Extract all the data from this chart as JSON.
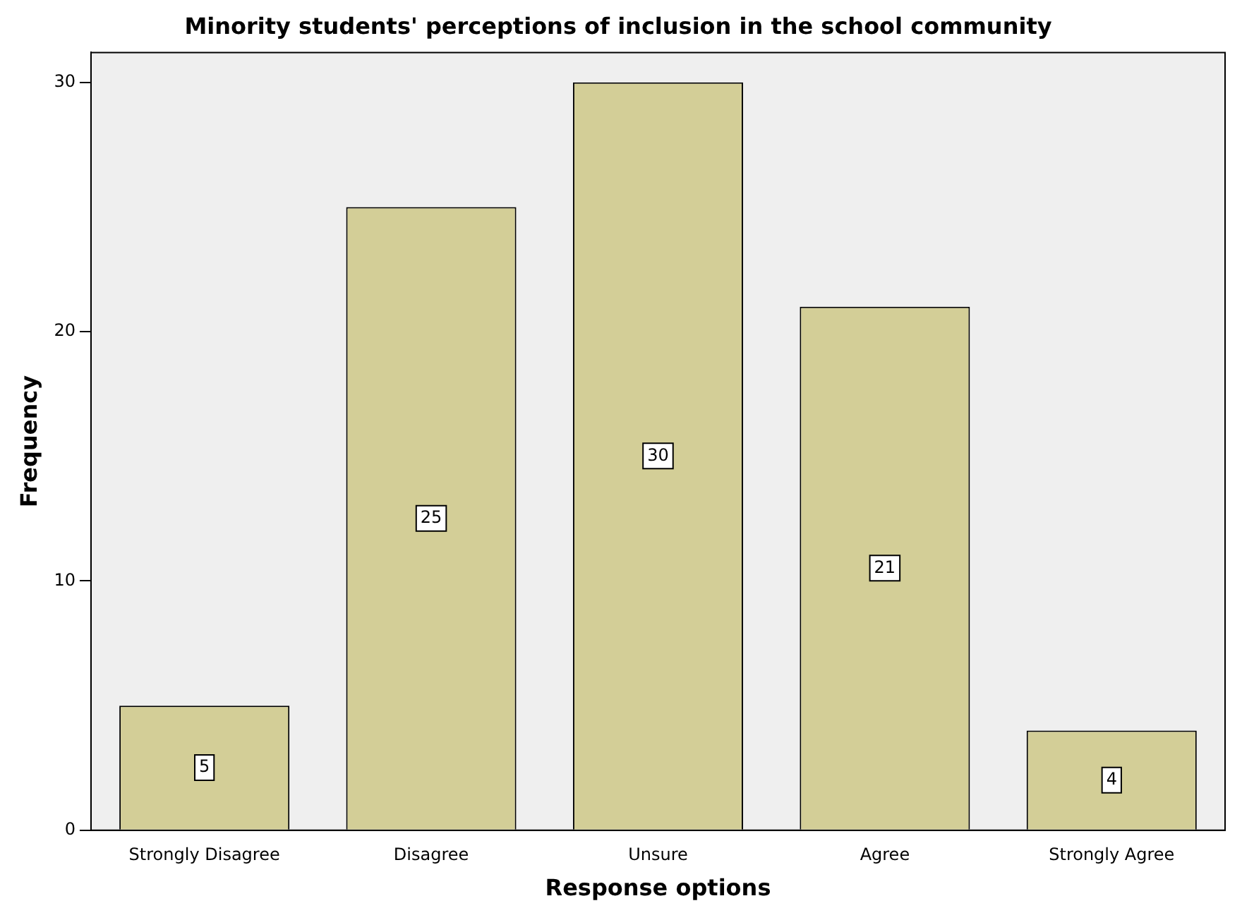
{
  "chart_data": {
    "type": "bar",
    "title": "Minority students' perceptions of inclusion in the school community",
    "xlabel": "Response options",
    "ylabel": "Frequency",
    "categories": [
      "Strongly Disagree",
      "Disagree",
      "Unsure",
      "Agree",
      "Strongly Agree"
    ],
    "values": [
      5,
      25,
      30,
      21,
      4
    ],
    "color": "#d3ce97",
    "ylim": [
      0,
      31.2
    ],
    "yticks": [
      0,
      10,
      20,
      30
    ],
    "grid": false,
    "legend": false,
    "data_labels": true
  }
}
